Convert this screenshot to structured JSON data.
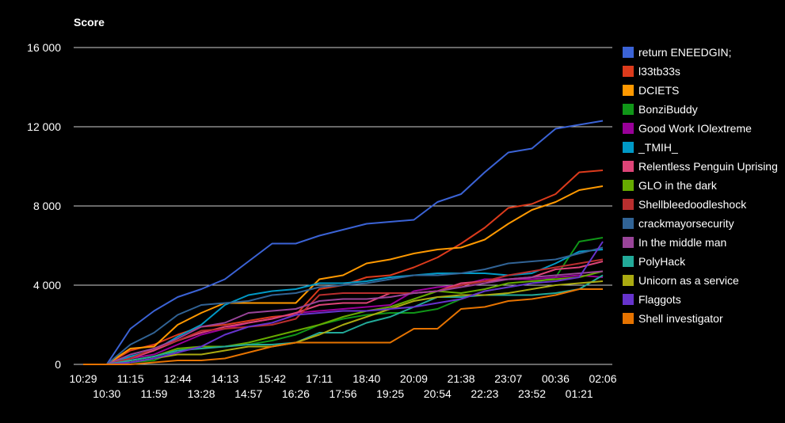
{
  "chart_data": {
    "type": "line",
    "ylabel": "Score",
    "xlabel": "",
    "ylim": [
      0,
      16000
    ],
    "yticks": [
      0,
      4000,
      8000,
      12000,
      16000
    ],
    "ytick_labels": [
      "0",
      "4 000",
      "8 000",
      "12 000",
      "16 000"
    ],
    "grid": true,
    "legend_position": "right",
    "x": [
      "10:29",
      "10:30",
      "11:15",
      "11:59",
      "12:44",
      "13:28",
      "14:13",
      "14:57",
      "15:42",
      "16:26",
      "17:11",
      "17:56",
      "18:40",
      "19:25",
      "20:09",
      "20:54",
      "21:38",
      "22:23",
      "23:07",
      "23:52",
      "00:36",
      "01:21",
      "02:06"
    ],
    "xtick_rows": {
      "top": [
        "10:29",
        "11:15",
        "12:44",
        "14:13",
        "15:42",
        "17:11",
        "18:40",
        "20:09",
        "21:38",
        "23:07",
        "00:36",
        "02:06"
      ],
      "bottom": [
        "10:30",
        "11:59",
        "13:28",
        "14:57",
        "16:26",
        "17:56",
        "19:25",
        "20:54",
        "22:23",
        "23:52",
        "01:21"
      ]
    },
    "series": [
      {
        "name": "return ENEEDGIN;",
        "color": "#3b63d6",
        "values": [
          0,
          0,
          1800,
          2700,
          3400,
          3800,
          4300,
          5200,
          6100,
          6100,
          6500,
          6800,
          7100,
          7200,
          7300,
          8200,
          8600,
          9700,
          10700,
          10900,
          11900,
          12100,
          12300
        ]
      },
      {
        "name": "l33tb33s",
        "color": "#dc3b1c",
        "values": [
          0,
          0,
          700,
          1000,
          1500,
          1900,
          2000,
          2200,
          2400,
          2500,
          3800,
          4000,
          4400,
          4500,
          4900,
          5400,
          6100,
          6900,
          7900,
          8100,
          8600,
          9700,
          9800
        ]
      },
      {
        "name": "DCIETS",
        "color": "#ff9900",
        "values": [
          0,
          0,
          800,
          900,
          2000,
          2600,
          3100,
          3100,
          3100,
          3100,
          4300,
          4500,
          5100,
          5300,
          5600,
          5800,
          5900,
          6300,
          7100,
          7800,
          8200,
          8800,
          9000
        ]
      },
      {
        "name": "BonziBuddy",
        "color": "#109618",
        "values": [
          0,
          0,
          100,
          200,
          700,
          900,
          900,
          1000,
          1200,
          1500,
          2000,
          2300,
          2500,
          2600,
          2600,
          2800,
          3300,
          3700,
          3900,
          4100,
          4400,
          6200,
          6400
        ]
      },
      {
        "name": "Good Work IOlextreme",
        "color": "#990099",
        "values": [
          0,
          0,
          300,
          500,
          1000,
          1500,
          1800,
          2100,
          2300,
          2600,
          2700,
          2800,
          2900,
          3000,
          3700,
          3900,
          4000,
          4300,
          4300,
          4300,
          4400,
          4500,
          4400
        ]
      },
      {
        "name": "_TMIH_",
        "color": "#0099c6",
        "values": [
          0,
          0,
          400,
          700,
          1400,
          2000,
          3000,
          3500,
          3700,
          3800,
          4100,
          4100,
          4200,
          4400,
          4500,
          4600,
          4600,
          4600,
          4500,
          4600,
          5100,
          5700,
          5800
        ]
      },
      {
        "name": "Relentless Penguin Uprising",
        "color": "#dd4477",
        "values": [
          0,
          0,
          300,
          700,
          1200,
          1600,
          1900,
          2100,
          2300,
          2600,
          3000,
          3100,
          3100,
          3600,
          3600,
          3700,
          4100,
          4200,
          4300,
          4400,
          4800,
          4900,
          5200
        ]
      },
      {
        "name": "GLO in the dark",
        "color": "#66aa00",
        "values": [
          0,
          0,
          200,
          400,
          800,
          900,
          900,
          1100,
          1400,
          1700,
          2000,
          2400,
          2700,
          2900,
          3300,
          3700,
          3600,
          3800,
          4100,
          4200,
          4300,
          4400,
          4700
        ]
      },
      {
        "name": "Shellbleedoodleshock",
        "color": "#b82e2e",
        "values": [
          0,
          0,
          300,
          800,
          1200,
          1700,
          1800,
          1900,
          2000,
          2300,
          3500,
          3600,
          3600,
          3600,
          3600,
          3700,
          4000,
          4200,
          4500,
          4700,
          4900,
          5100,
          5300
        ]
      },
      {
        "name": "crackmayorsecurity",
        "color": "#316395",
        "values": [
          0,
          0,
          1000,
          1600,
          2500,
          3000,
          3100,
          3200,
          3500,
          3600,
          3900,
          4000,
          4100,
          4300,
          4500,
          4500,
          4600,
          4800,
          5100,
          5200,
          5300,
          5600,
          5900
        ]
      },
      {
        "name": "In the middle man",
        "color": "#994499",
        "values": [
          0,
          0,
          500,
          800,
          1300,
          1900,
          2100,
          2600,
          2700,
          2800,
          3200,
          3300,
          3300,
          3400,
          3600,
          3700,
          3900,
          4100,
          4300,
          4400,
          4500,
          4600,
          4700
        ]
      },
      {
        "name": "PolyHack",
        "color": "#22aa99",
        "values": [
          0,
          0,
          200,
          400,
          700,
          800,
          900,
          1000,
          1000,
          1100,
          1600,
          1600,
          2100,
          2400,
          2900,
          3400,
          3400,
          3500,
          3500,
          3500,
          3600,
          3800,
          4500
        ]
      },
      {
        "name": "Unicorn as a service",
        "color": "#aaaa11",
        "values": [
          0,
          0,
          100,
          300,
          500,
          500,
          700,
          900,
          900,
          1100,
          1500,
          2000,
          2400,
          2800,
          3200,
          3400,
          3500,
          3500,
          3600,
          3800,
          4000,
          4100,
          4200
        ]
      },
      {
        "name": "Flaggots",
        "color": "#6633cc",
        "values": [
          0,
          0,
          100,
          300,
          600,
          900,
          1500,
          1900,
          2100,
          2500,
          2600,
          2700,
          2700,
          2800,
          2900,
          3100,
          3300,
          3700,
          3900,
          4100,
          4200,
          4400,
          6200
        ]
      },
      {
        "name": "Shell investigator",
        "color": "#e67300",
        "values": [
          0,
          0,
          0,
          100,
          200,
          200,
          300,
          600,
          900,
          1100,
          1100,
          1100,
          1100,
          1100,
          1800,
          1800,
          2800,
          2900,
          3200,
          3300,
          3500,
          3800,
          3800
        ]
      }
    ]
  }
}
